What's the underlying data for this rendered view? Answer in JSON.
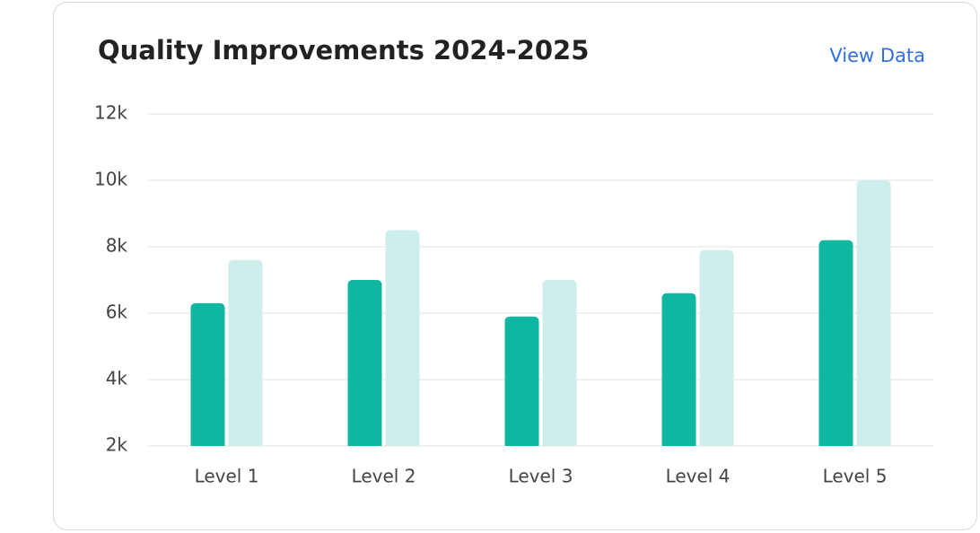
{
  "chart_data": {
    "type": "bar",
    "title": "Quality Improvements 2024-2025",
    "link": "View Data",
    "categories": [
      "Level 1",
      "Level 2",
      "Level 3",
      "Level 4",
      "Level 5"
    ],
    "series": [
      {
        "color": "#0fb6a0",
        "values": [
          6300,
          7000,
          5900,
          6600,
          8200
        ]
      },
      {
        "color": "#ceeeeb",
        "values": [
          7600,
          8500,
          7000,
          7900,
          10000
        ]
      }
    ],
    "ylim": [
      2000,
      12000
    ],
    "yticks": [
      {
        "value": 2000,
        "label": "2k"
      },
      {
        "value": 4000,
        "label": "4k"
      },
      {
        "value": 6000,
        "label": "6k"
      },
      {
        "value": 8000,
        "label": "8k"
      },
      {
        "value": 10000,
        "label": "10k"
      },
      {
        "value": 12000,
        "label": "12k"
      }
    ],
    "grid": true
  }
}
